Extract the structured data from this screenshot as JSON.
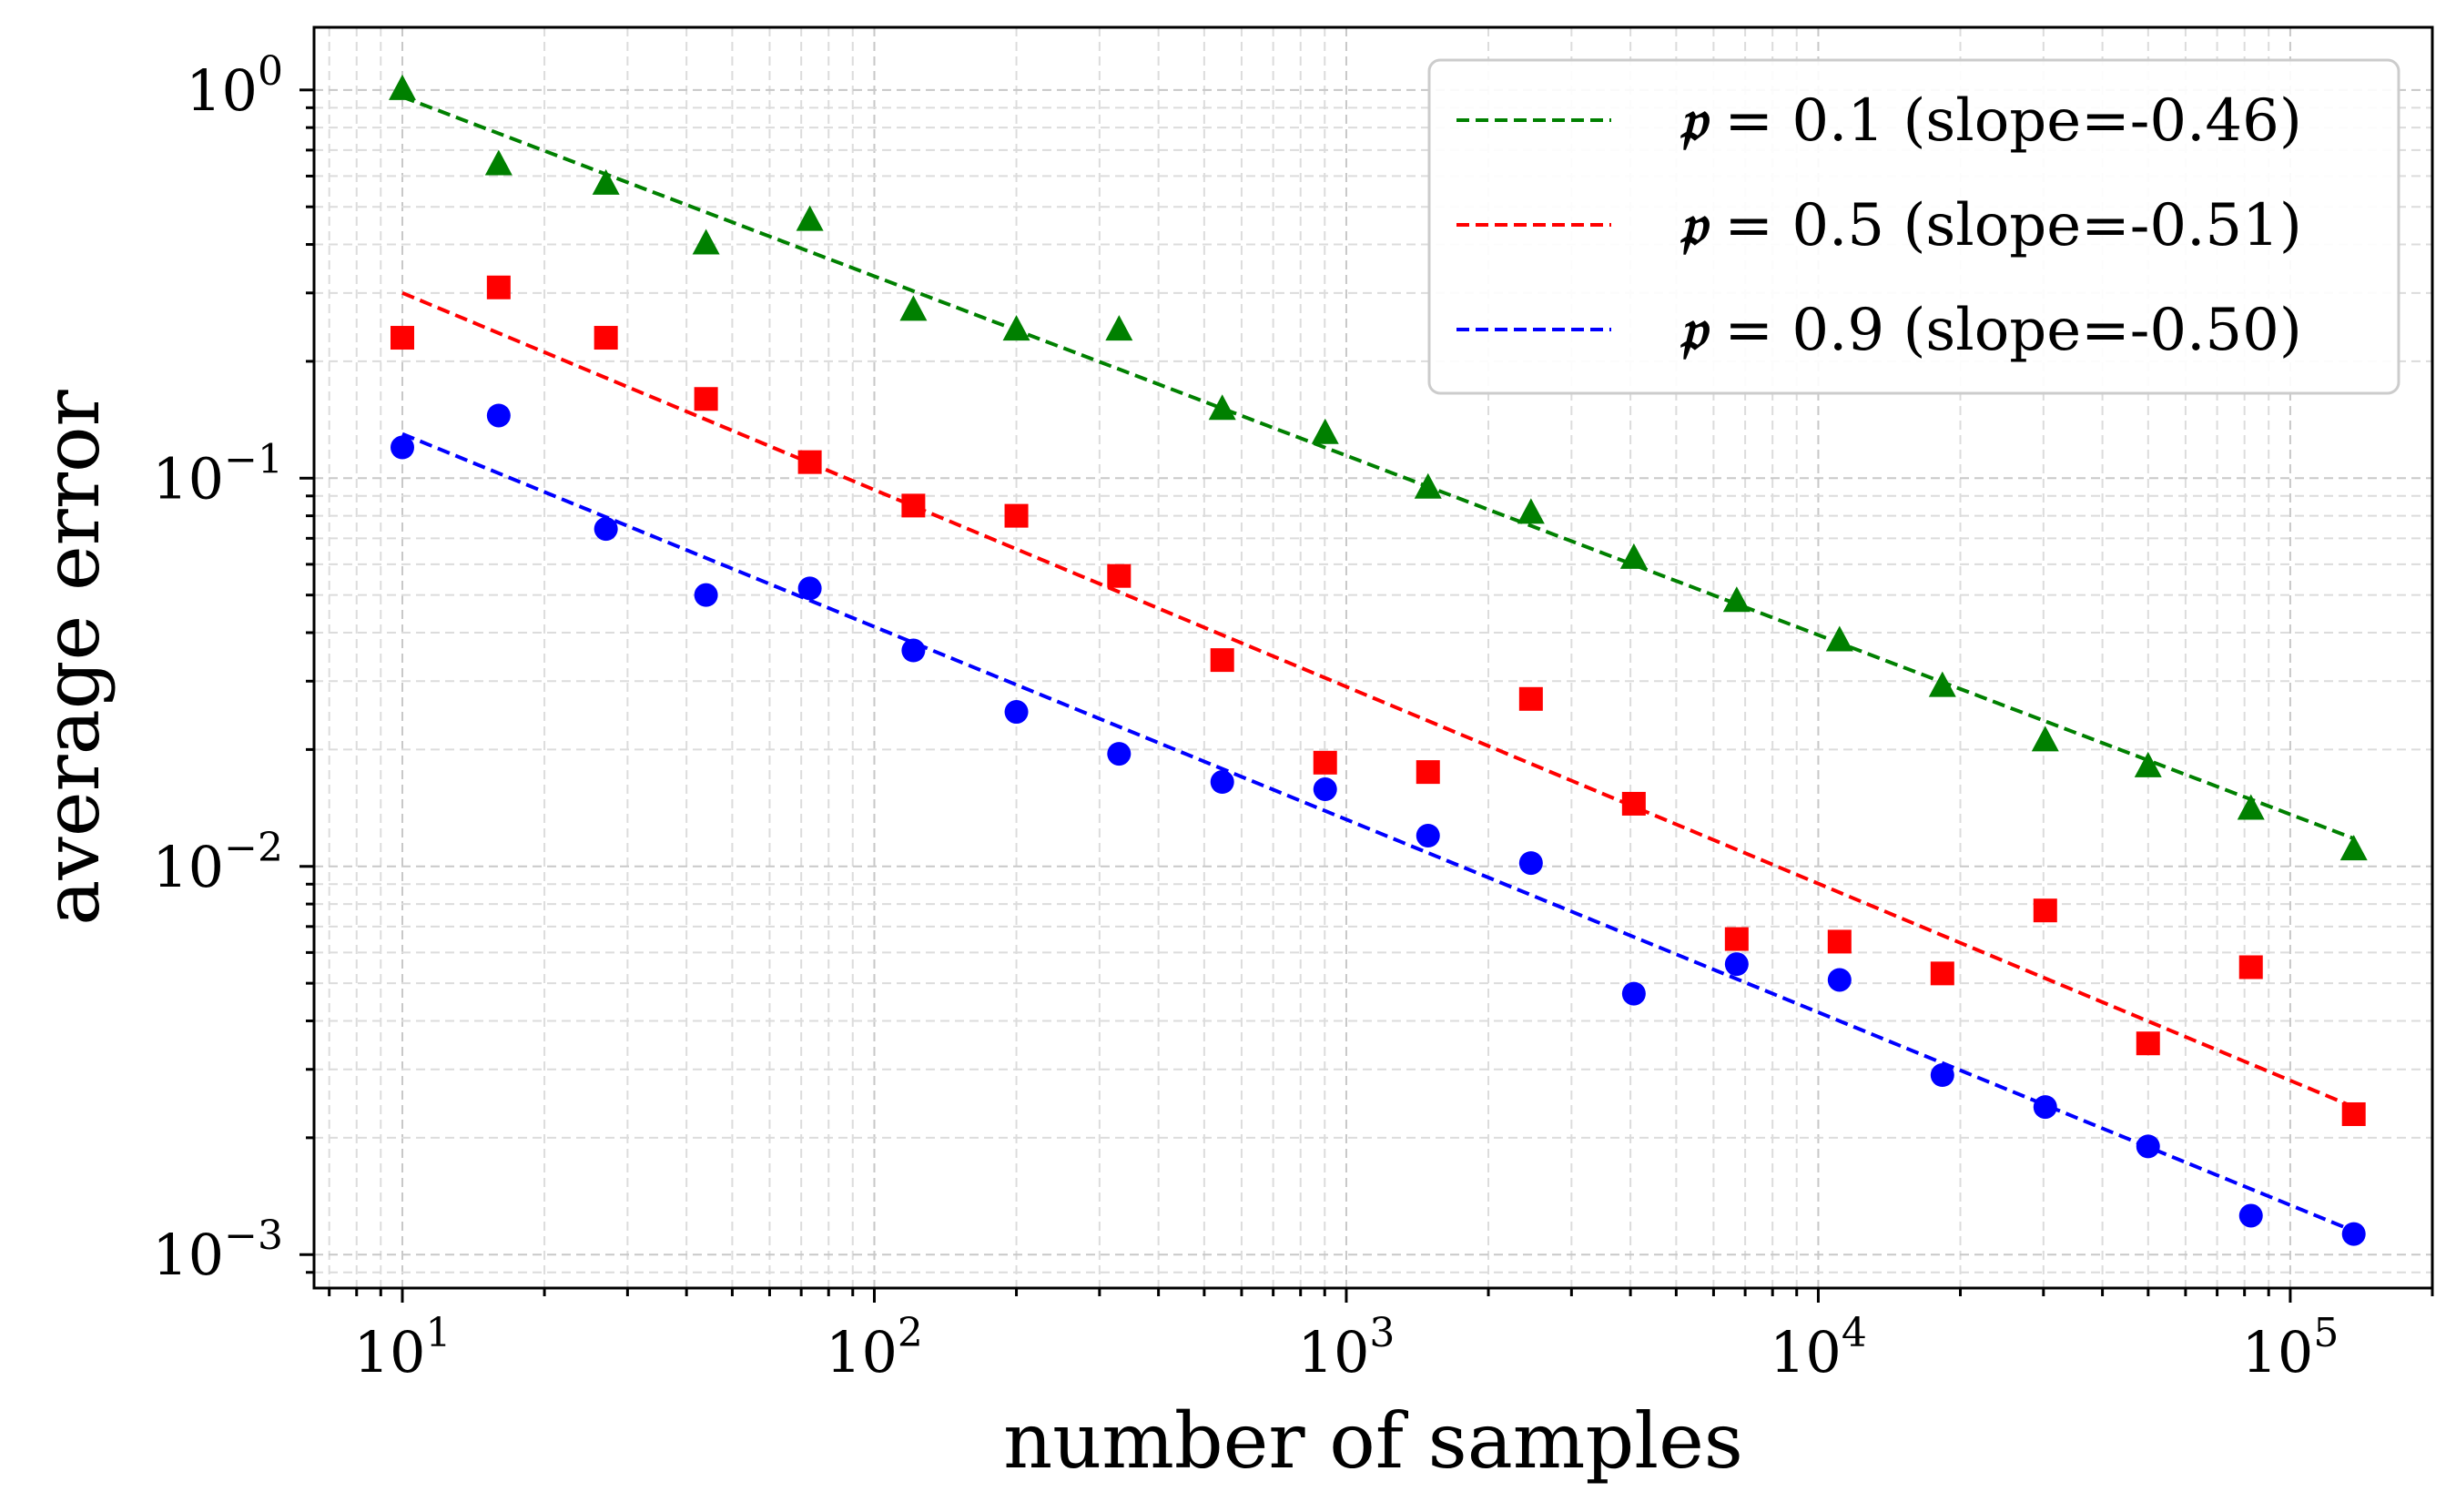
{
  "chart_data": {
    "type": "scatter",
    "xscale": "log",
    "yscale": "log",
    "xlabel": "number of samples",
    "ylabel": "average error",
    "xlim": [
      6.5,
      200000
    ],
    "ylim": [
      0.00082,
      1.45
    ],
    "grid": true,
    "legend_position": "top-right",
    "x_ticks": [
      {
        "base": "10",
        "exp": "1",
        "value": 10
      },
      {
        "base": "10",
        "exp": "2",
        "value": 100
      },
      {
        "base": "10",
        "exp": "3",
        "value": 1000
      },
      {
        "base": "10",
        "exp": "4",
        "value": 10000
      },
      {
        "base": "10",
        "exp": "5",
        "value": 100000
      }
    ],
    "y_ticks": [
      {
        "base": "10",
        "exp": "0",
        "value": 1
      },
      {
        "base": "10",
        "exp": "−1",
        "value": 0.1
      },
      {
        "base": "10",
        "exp": "−2",
        "value": 0.01
      },
      {
        "base": "10",
        "exp": "−3",
        "value": 0.001
      }
    ],
    "x": [
      10,
      16,
      27,
      44,
      73,
      121,
      200,
      330,
      546,
      902,
      1490,
      2462,
      4067,
      6717,
      11094,
      18323,
      30262,
      49981,
      82549,
      136339
    ],
    "series": [
      {
        "name": "p = 0.1",
        "legend_symbol": "𝔭",
        "legend_value": "= 0.1",
        "legend_slope": "(slope=-0.46)",
        "color": "#008000",
        "marker": "triangle",
        "values": [
          1.0,
          0.64,
          0.57,
          0.4,
          0.46,
          0.27,
          0.24,
          0.24,
          0.15,
          0.13,
          0.094,
          0.081,
          0.062,
          0.048,
          0.038,
          0.029,
          0.021,
          0.018,
          0.014,
          0.011
        ],
        "fit_start": 0.96,
        "fit_end": 0.0118
      },
      {
        "name": "p = 0.5",
        "legend_symbol": "𝔭",
        "legend_value": "= 0.5",
        "legend_slope": "(slope=-0.51)",
        "color": "#ff0000",
        "marker": "square",
        "values": [
          0.23,
          0.31,
          0.23,
          0.16,
          0.11,
          0.085,
          0.08,
          0.056,
          0.034,
          0.0185,
          0.0175,
          0.027,
          0.0145,
          0.0065,
          0.0064,
          0.0053,
          0.0077,
          0.0035,
          0.0055,
          0.0023
        ],
        "fit_start": 0.3,
        "fit_end": 0.0024
      },
      {
        "name": "p = 0.9",
        "legend_symbol": "𝔭",
        "legend_value": "= 0.9",
        "legend_slope": "(slope=-0.50)",
        "color": "#0000ff",
        "marker": "circle",
        "values": [
          0.12,
          0.145,
          0.074,
          0.05,
          0.052,
          0.036,
          0.025,
          0.0195,
          0.0165,
          0.0158,
          0.012,
          0.0102,
          0.0047,
          0.0056,
          0.0051,
          0.0029,
          0.0024,
          0.0019,
          0.00126,
          0.00113
        ],
        "fit_start": 0.13,
        "fit_end": 0.00115
      }
    ]
  }
}
